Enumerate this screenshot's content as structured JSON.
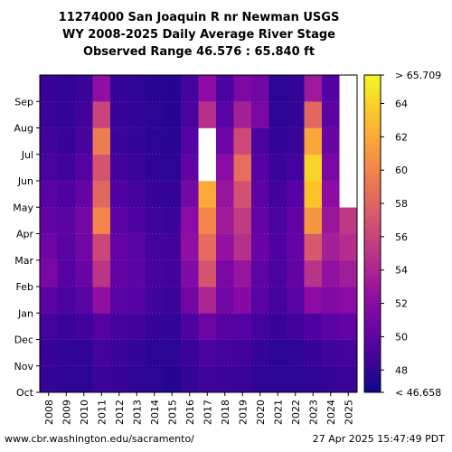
{
  "title_lines": [
    "11274000 San Joaquin R nr Newman USGS",
    "WY 2008-2025 Daily Average River Stage",
    "Observed Range 46.576 : 65.840 ft"
  ],
  "footer": {
    "left": "www.cbr.washington.edu/sacramento/",
    "right": "27 Apr 2025 15:47:49 PDT"
  },
  "colors": {
    "low": "#0d0887",
    "mid": "#cc4778",
    "high": "#f0f921",
    "missing": "#ffffff"
  },
  "chart_data": {
    "type": "heatmap",
    "x": [
      "2008",
      "2009",
      "2010",
      "2011",
      "2012",
      "2013",
      "2014",
      "2015",
      "2016",
      "2017",
      "2018",
      "2019",
      "2020",
      "2021",
      "2022",
      "2023",
      "2024",
      "2025"
    ],
    "y": [
      "Oct",
      "Nov",
      "Dec",
      "Jan",
      "Feb",
      "Mar",
      "Apr",
      "May",
      "Jun",
      "Jul",
      "Aug",
      "Sep"
    ],
    "zlim": [
      46.658,
      65.709
    ],
    "colorbar_ticks": [
      "< 46.658",
      "48",
      "50",
      "52",
      "54",
      "56",
      "58",
      "60",
      "62",
      "64",
      "> 65.709"
    ],
    "monthly_values": [
      [
        48.2,
        48.0,
        47.9,
        48.5,
        48.3,
        48.0,
        47.8,
        47.6,
        48.2,
        48.6,
        48.5,
        48.4,
        48.0,
        47.8,
        47.9,
        48.0,
        48.2,
        48.4
      ],
      [
        48.3,
        48.1,
        48.0,
        48.8,
        48.5,
        48.2,
        47.9,
        47.8,
        48.4,
        49.0,
        48.8,
        48.7,
        48.2,
        47.9,
        48.0,
        48.3,
        48.6,
        48.8
      ],
      [
        48.8,
        48.4,
        48.7,
        49.5,
        48.9,
        48.6,
        48.2,
        48.1,
        49.2,
        50.5,
        49.5,
        49.4,
        48.8,
        48.3,
        48.6,
        49.2,
        49.8,
        50.0
      ],
      [
        49.8,
        49.0,
        49.6,
        52.5,
        49.6,
        49.4,
        48.6,
        48.4,
        50.8,
        54.0,
        50.8,
        51.8,
        49.6,
        48.8,
        49.6,
        52.2,
        51.6,
        52.0
      ],
      [
        51.2,
        49.5,
        50.4,
        55.0,
        50.0,
        49.8,
        48.9,
        48.7,
        51.6,
        57.0,
        51.2,
        52.8,
        49.9,
        49.0,
        50.0,
        54.8,
        52.6,
        53.4
      ],
      [
        50.6,
        49.6,
        50.8,
        56.2,
        50.2,
        49.6,
        48.8,
        48.6,
        52.4,
        58.5,
        52.6,
        54.6,
        50.4,
        49.2,
        50.2,
        57.2,
        53.6,
        54.5
      ],
      [
        50.0,
        49.8,
        51.0,
        60.0,
        49.8,
        49.2,
        48.6,
        48.4,
        52.0,
        60.2,
        53.2,
        55.4,
        50.2,
        49.0,
        50.0,
        61.0,
        53.0,
        55.2
      ],
      [
        49.6,
        49.2,
        50.2,
        58.2,
        49.2,
        48.8,
        48.3,
        48.1,
        51.0,
        62.0,
        52.8,
        56.8,
        49.8,
        48.7,
        49.4,
        63.2,
        52.2,
        null
      ],
      [
        49.0,
        48.6,
        49.4,
        57.0,
        48.7,
        48.4,
        48.0,
        47.9,
        50.0,
        null,
        52.0,
        58.6,
        49.4,
        48.4,
        48.8,
        64.0,
        51.2,
        null
      ],
      [
        48.6,
        48.3,
        48.9,
        59.5,
        48.5,
        48.2,
        47.9,
        47.7,
        49.4,
        null,
        50.6,
        56.4,
        49.0,
        48.1,
        48.4,
        61.8,
        50.4,
        null
      ],
      [
        48.4,
        48.1,
        48.6,
        56.0,
        48.3,
        48.1,
        47.8,
        47.6,
        49.0,
        54.6,
        49.6,
        53.6,
        51.2,
        47.9,
        48.1,
        58.2,
        49.8,
        null
      ],
      [
        48.3,
        48.0,
        48.4,
        52.4,
        48.2,
        48.0,
        47.7,
        47.6,
        48.8,
        52.2,
        49.0,
        51.4,
        50.8,
        47.8,
        48.0,
        53.2,
        49.3,
        null
      ]
    ]
  }
}
